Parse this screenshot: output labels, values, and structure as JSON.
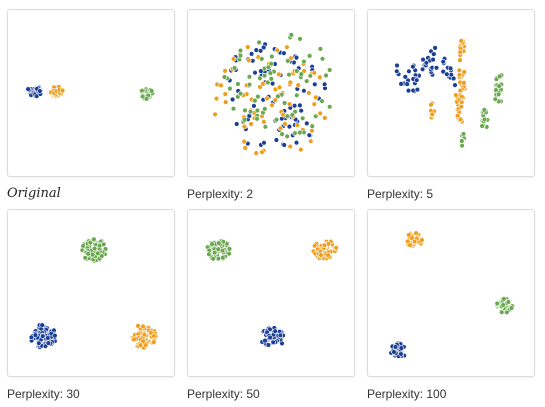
{
  "chart_data": [
    {
      "type": "scatter",
      "caption": "Original",
      "caption_style": "italic-serif",
      "series": [
        {
          "color": "#1b3f94",
          "clusters": [
            {
              "cx": 0.13,
              "cy": 0.49,
              "n": 28,
              "r": 0.045,
              "shape": "blob"
            }
          ]
        },
        {
          "color": "#f09d1c",
          "clusters": [
            {
              "cx": 0.28,
              "cy": 0.49,
              "n": 26,
              "r": 0.042,
              "shape": "blob"
            }
          ]
        },
        {
          "color": "#6aa84f",
          "clusters": [
            {
              "cx": 0.86,
              "cy": 0.5,
              "n": 26,
              "r": 0.045,
              "shape": "blob"
            }
          ]
        }
      ]
    },
    {
      "type": "scatter",
      "caption": "Perplexity: 2",
      "caption_style": "plain",
      "series": [
        {
          "color": "#1b3f94",
          "clusters": [
            {
              "cx": 0.52,
              "cy": 0.52,
              "n": 80,
              "r": 0.36,
              "shape": "scatter"
            }
          ]
        },
        {
          "color": "#f09d1c",
          "clusters": [
            {
              "cx": 0.5,
              "cy": 0.55,
              "n": 72,
              "r": 0.38,
              "shape": "scatter"
            }
          ]
        },
        {
          "color": "#6aa84f",
          "clusters": [
            {
              "cx": 0.55,
              "cy": 0.45,
              "n": 72,
              "r": 0.36,
              "shape": "scatter"
            }
          ]
        }
      ]
    },
    {
      "type": "scatter",
      "caption": "Perplexity: 5",
      "caption_style": "plain",
      "series": [
        {
          "color": "#1b3f94",
          "clusters": [
            {
              "cx": 0.26,
              "cy": 0.38,
              "n": 30,
              "r": 0.13,
              "shape": "blob"
            },
            {
              "cx": 0.38,
              "cy": 0.28,
              "n": 14,
              "r": 0.09,
              "shape": "blob"
            },
            {
              "cx": 0.5,
              "cy": 0.39,
              "n": 12,
              "r": 0.07,
              "shape": "blob"
            }
          ]
        },
        {
          "color": "#f09d1c",
          "clusters": [
            {
              "cx": 0.56,
              "cy": 0.6,
              "n": 24,
              "r": 0.1,
              "shape": "line"
            },
            {
              "cx": 0.57,
              "cy": 0.42,
              "n": 14,
              "r": 0.08,
              "shape": "line"
            },
            {
              "cx": 0.57,
              "cy": 0.22,
              "n": 12,
              "r": 0.07,
              "shape": "line"
            },
            {
              "cx": 0.38,
              "cy": 0.62,
              "n": 10,
              "r": 0.06,
              "shape": "line"
            }
          ]
        },
        {
          "color": "#6aa84f",
          "clusters": [
            {
              "cx": 0.81,
              "cy": 0.47,
              "n": 22,
              "r": 0.09,
              "shape": "line"
            },
            {
              "cx": 0.72,
              "cy": 0.68,
              "n": 14,
              "r": 0.07,
              "shape": "line"
            },
            {
              "cx": 0.58,
              "cy": 0.8,
              "n": 10,
              "r": 0.05,
              "shape": "line"
            }
          ]
        }
      ]
    },
    {
      "type": "scatter",
      "caption": "Perplexity: 30",
      "caption_style": "plain",
      "series": [
        {
          "color": "#1b3f94",
          "clusters": [
            {
              "cx": 0.19,
              "cy": 0.78,
              "n": 70,
              "r": 0.085,
              "shape": "blob"
            }
          ]
        },
        {
          "color": "#f09d1c",
          "clusters": [
            {
              "cx": 0.84,
              "cy": 0.78,
              "n": 70,
              "r": 0.085,
              "shape": "blob"
            }
          ]
        },
        {
          "color": "#6aa84f",
          "clusters": [
            {
              "cx": 0.52,
              "cy": 0.22,
              "n": 65,
              "r": 0.082,
              "shape": "blob"
            }
          ]
        }
      ]
    },
    {
      "type": "scatter",
      "caption": "Perplexity: 50",
      "caption_style": "plain",
      "series": [
        {
          "color": "#1b3f94",
          "clusters": [
            {
              "cx": 0.51,
              "cy": 0.79,
              "n": 60,
              "r": 0.075,
              "shape": "blob"
            }
          ]
        },
        {
          "color": "#f09d1c",
          "clusters": [
            {
              "cx": 0.85,
              "cy": 0.22,
              "n": 60,
              "r": 0.075,
              "shape": "blob"
            }
          ]
        },
        {
          "color": "#6aa84f",
          "clusters": [
            {
              "cx": 0.16,
              "cy": 0.22,
              "n": 60,
              "r": 0.075,
              "shape": "blob"
            }
          ]
        }
      ]
    },
    {
      "type": "scatter",
      "caption": "Perplexity: 100",
      "caption_style": "plain",
      "series": [
        {
          "color": "#1b3f94",
          "clusters": [
            {
              "cx": 0.16,
              "cy": 0.87,
              "n": 40,
              "r": 0.055,
              "shape": "blob"
            }
          ]
        },
        {
          "color": "#f09d1c",
          "clusters": [
            {
              "cx": 0.26,
              "cy": 0.15,
              "n": 40,
              "r": 0.055,
              "shape": "blob"
            }
          ]
        },
        {
          "color": "#6aa84f",
          "clusters": [
            {
              "cx": 0.85,
              "cy": 0.58,
              "n": 40,
              "r": 0.055,
              "shape": "blob"
            }
          ]
        }
      ]
    }
  ]
}
